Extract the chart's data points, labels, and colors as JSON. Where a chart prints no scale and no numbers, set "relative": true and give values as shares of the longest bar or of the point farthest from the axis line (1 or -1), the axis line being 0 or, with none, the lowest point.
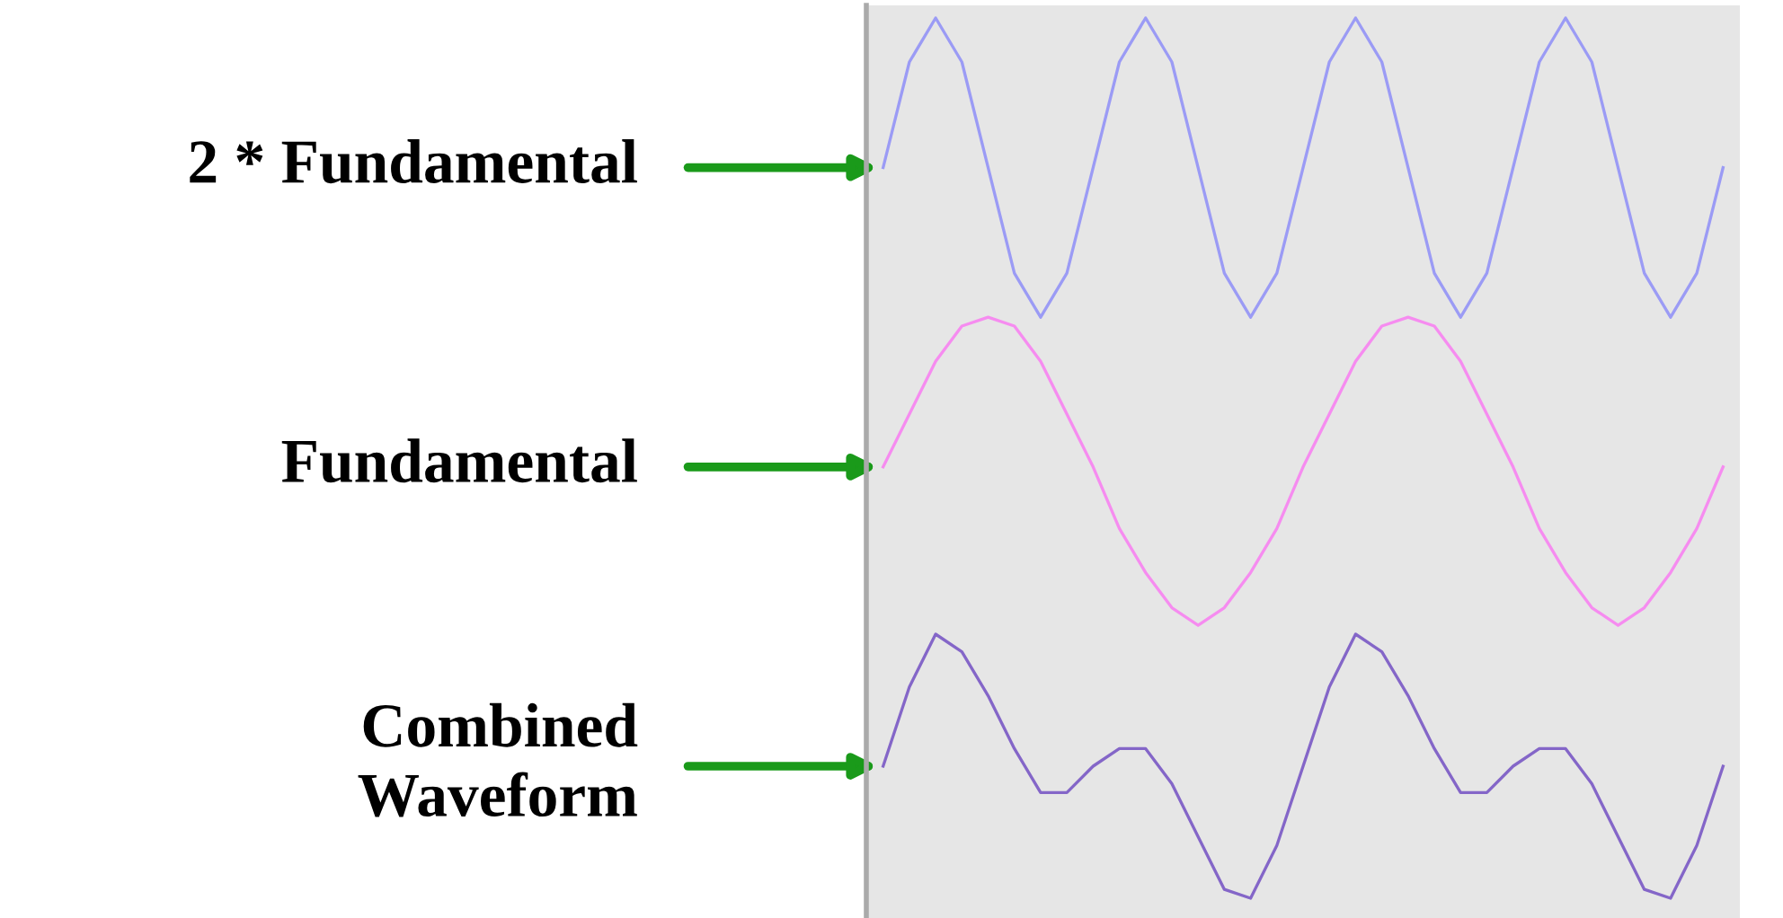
{
  "chart_data": {
    "type": "line",
    "relative": true,
    "categories": [
      null,
      null,
      null,
      null,
      null,
      null,
      null,
      null,
      null,
      null,
      null,
      null,
      null,
      null,
      null,
      null,
      null,
      null,
      null,
      null,
      null,
      null,
      null,
      null,
      null,
      null,
      null,
      null,
      null,
      null,
      null,
      null,
      null
    ],
    "series": [
      {
        "name": "2 * Fundamental",
        "color": "#9b9bf5",
        "values": [
          0.83,
          0.95,
          1.0,
          0.95,
          0.83,
          0.71,
          0.66,
          0.71,
          0.83,
          0.95,
          1.0,
          0.95,
          0.83,
          0.71,
          0.66,
          0.71,
          0.83,
          0.95,
          1.0,
          0.95,
          0.83,
          0.71,
          0.66,
          0.71,
          0.83,
          0.95,
          1.0,
          0.95,
          0.83,
          0.71,
          0.66,
          0.71,
          0.83
        ]
      },
      {
        "name": "Fundamental",
        "color": "#f68cf0",
        "values": [
          0.49,
          0.55,
          0.61,
          0.65,
          0.66,
          0.65,
          0.61,
          0.55,
          0.49,
          0.42,
          0.37,
          0.33,
          0.31,
          0.33,
          0.37,
          0.42,
          0.49,
          0.55,
          0.61,
          0.65,
          0.66,
          0.65,
          0.61,
          0.55,
          0.49,
          0.42,
          0.37,
          0.33,
          0.31,
          0.33,
          0.37,
          0.42,
          0.49
        ]
      },
      {
        "name": "Combined\nWaveform",
        "color": "#8466c8",
        "values": [
          0.15,
          0.24,
          0.3,
          0.28,
          0.23,
          0.17,
          0.12,
          0.12,
          0.15,
          0.17,
          0.17,
          0.13,
          0.07,
          0.01,
          0,
          0.06,
          0.15,
          0.24,
          0.3,
          0.28,
          0.23,
          0.17,
          0.12,
          0.12,
          0.15,
          0.17,
          0.17,
          0.13,
          0.07,
          0.01,
          0,
          0.06,
          0.15
        ]
      }
    ]
  }
}
